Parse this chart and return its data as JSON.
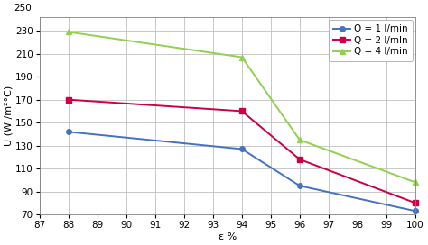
{
  "series": [
    {
      "label": "Q = 1 l/min",
      "color": "#4472C4",
      "marker": "o",
      "markersize": 4,
      "x": [
        88,
        94,
        96,
        100
      ],
      "y": [
        142,
        127,
        95,
        73
      ]
    },
    {
      "label": "Q = 2 l/mln",
      "color": "#CC0044",
      "marker": "s",
      "markersize": 4,
      "x": [
        88,
        94,
        96,
        100
      ],
      "y": [
        170,
        160,
        118,
        80
      ]
    },
    {
      "label": "Q = 4 l/min",
      "color": "#92D050",
      "marker": "^",
      "markersize": 5,
      "x": [
        88,
        94,
        96,
        100
      ],
      "y": [
        229,
        207,
        135,
        98
      ]
    }
  ],
  "xlabel": "ε %",
  "ylabel": "U (W /m²°C)",
  "xlim": [
    87,
    100
  ],
  "ylim": [
    70,
    242
  ],
  "xticks": [
    87,
    88,
    89,
    90,
    91,
    92,
    93,
    94,
    95,
    96,
    97,
    98,
    99,
    100
  ],
  "yticks": [
    70,
    90,
    110,
    130,
    150,
    170,
    190,
    210,
    230
  ],
  "ytick_labels": [
    "70",
    "90",
    "110",
    "130",
    "150",
    "170",
    "190",
    "210",
    "230"
  ],
  "extra_ytick": 250,
  "background_color": "#FFFFFF",
  "grid_color": "#BFBFBF",
  "title_fontsize": 8,
  "axis_fontsize": 8,
  "tick_fontsize": 7.5,
  "legend_fontsize": 7.5
}
